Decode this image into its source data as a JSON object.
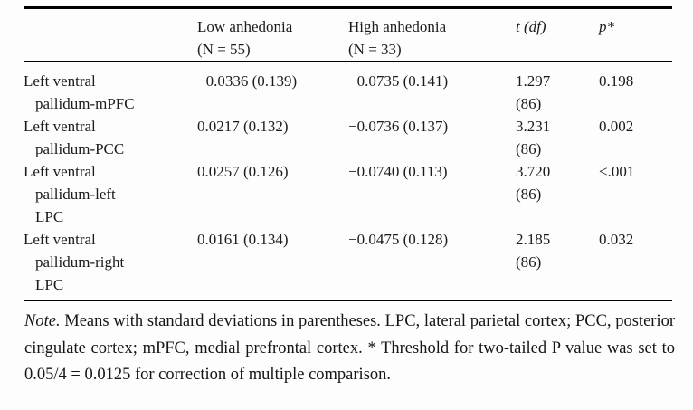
{
  "colors": {
    "background": "#fdfdfd",
    "text": "#1b1b1b",
    "rule": "#000000"
  },
  "table": {
    "header": {
      "low": {
        "line1": "Low anhedonia",
        "line2": "(N = 55)"
      },
      "high": {
        "line1": "High anhedonia",
        "line2": "(N = 33)"
      },
      "t": "t (df)",
      "p": "p*"
    },
    "rows": [
      {
        "label": [
          "Left ventral",
          "pallidum-mPFC"
        ],
        "low": "−0.0336 (0.139)",
        "high": "−0.0735 (0.141)",
        "t": "1.297",
        "df": "(86)",
        "p": "0.198"
      },
      {
        "label": [
          "Left ventral",
          "pallidum-PCC"
        ],
        "low": "0.0217 (0.132)",
        "high": "−0.0736 (0.137)",
        "t": "3.231",
        "df": "(86)",
        "p": "0.002"
      },
      {
        "label": [
          "Left ventral",
          "pallidum-left",
          "LPC"
        ],
        "low": "0.0257 (0.126)",
        "high": "−0.0740 (0.113)",
        "t": "3.720",
        "df": "(86)",
        "p": "<.001"
      },
      {
        "label": [
          "Left ventral",
          "pallidum-right",
          "LPC"
        ],
        "low": "0.0161 (0.134)",
        "high": "−0.0475 (0.128)",
        "t": "2.185",
        "df": "(86)",
        "p": "0.032"
      }
    ]
  },
  "note": {
    "label": "Note.",
    "text": " Means with standard deviations in parentheses. LPC, lateral parietal cortex; PCC, posterior cingulate cortex; mPFC, medial prefrontal cortex. * Threshold for two-tailed P value was set to 0.05/4 = 0.0125 for correction of multiple comparison."
  }
}
